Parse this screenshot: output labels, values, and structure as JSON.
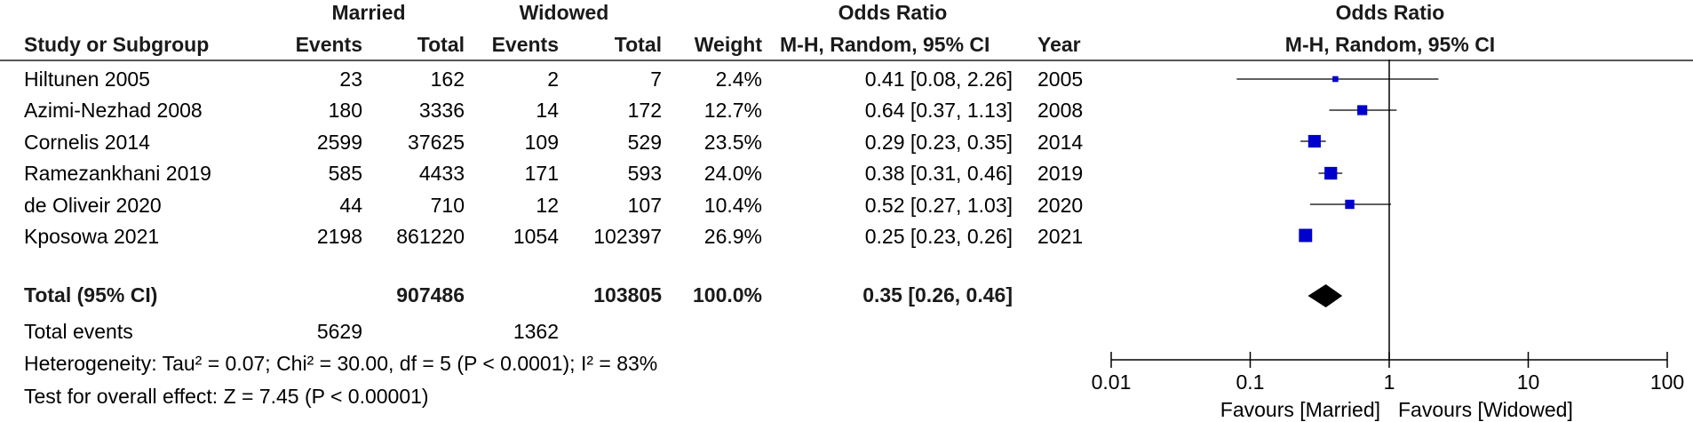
{
  "header": {
    "group1": "Married",
    "group2": "Widowed",
    "or_title": "Odds Ratio",
    "plot_title": "Odds Ratio",
    "columns": {
      "study": "Study or Subgroup",
      "events1": "Events",
      "total1": "Total",
      "events2": "Events",
      "total2": "Total",
      "weight": "Weight",
      "method": "M-H, Random, 95% CI",
      "year": "Year",
      "plot_method": "M-H, Random, 95% CI"
    }
  },
  "studies": [
    {
      "name": "Hiltunen 2005",
      "events1": "23",
      "total1": "162",
      "events2": "2",
      "total2": "7",
      "weight": "2.4%",
      "ci_text": "0.41 [0.08, 2.26]",
      "year": "2005"
    },
    {
      "name": "Azimi-Nezhad 2008",
      "events1": "180",
      "total1": "3336",
      "events2": "14",
      "total2": "172",
      "weight": "12.7%",
      "ci_text": "0.64 [0.37, 1.13]",
      "year": "2008"
    },
    {
      "name": "Cornelis 2014",
      "events1": "2599",
      "total1": "37625",
      "events2": "109",
      "total2": "529",
      "weight": "23.5%",
      "ci_text": "0.29 [0.23, 0.35]",
      "year": "2014"
    },
    {
      "name": "Ramezankhani 2019",
      "events1": "585",
      "total1": "4433",
      "events2": "171",
      "total2": "593",
      "weight": "24.0%",
      "ci_text": "0.38 [0.31, 0.46]",
      "year": "2019"
    },
    {
      "name": "de Oliveir 2020",
      "events1": "44",
      "total1": "710",
      "events2": "12",
      "total2": "107",
      "weight": "10.4%",
      "ci_text": "0.52 [0.27, 1.03]",
      "year": "2020"
    },
    {
      "name": "Kposowa 2021",
      "events1": "2198",
      "total1": "861220",
      "events2": "1054",
      "total2": "102397",
      "weight": "26.9%",
      "ci_text": "0.25 [0.23, 0.26]",
      "year": "2021"
    }
  ],
  "total": {
    "label": "Total (95% CI)",
    "total1": "907486",
    "total2": "103805",
    "weight": "100.0%",
    "ci_text": "0.35 [0.26, 0.46]"
  },
  "total_events": {
    "label": "Total events",
    "events1": "5629",
    "events2": "1362"
  },
  "heterogeneity": "Heterogeneity: Tau² = 0.07; Chi² = 30.00, df = 5 (P < 0.0001); I² = 83%",
  "overall_effect": "Test for overall effect: Z = 7.45 (P < 0.00001)",
  "axis": {
    "ticks": [
      "0.01",
      "0.1",
      "1",
      "10",
      "100"
    ],
    "favours_left": "Favours [Married]",
    "favours_right": "Favours [Widowed]"
  },
  "colors": {
    "marker": "#0000cc",
    "line": "#000000",
    "rule": "#555555"
  },
  "chart_data": {
    "type": "forest",
    "scale": "log",
    "xlim": [
      0.01,
      100
    ],
    "reference_line": 1,
    "points": [
      {
        "or": 0.41,
        "lower": 0.08,
        "upper": 2.26,
        "weight": 2.4
      },
      {
        "or": 0.64,
        "lower": 0.37,
        "upper": 1.13,
        "weight": 12.7
      },
      {
        "or": 0.29,
        "lower": 0.23,
        "upper": 0.35,
        "weight": 23.5
      },
      {
        "or": 0.38,
        "lower": 0.31,
        "upper": 0.46,
        "weight": 24.0
      },
      {
        "or": 0.52,
        "lower": 0.27,
        "upper": 1.03,
        "weight": 10.4
      },
      {
        "or": 0.25,
        "lower": 0.23,
        "upper": 0.26,
        "weight": 26.9
      }
    ],
    "summary": {
      "or": 0.35,
      "lower": 0.26,
      "upper": 0.46
    }
  }
}
